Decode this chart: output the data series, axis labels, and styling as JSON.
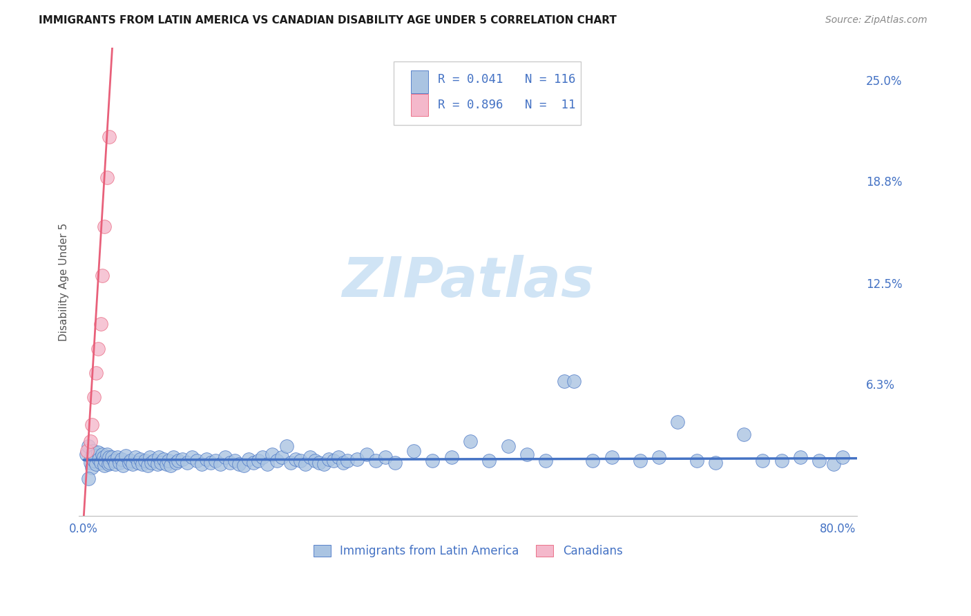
{
  "title": "IMMIGRANTS FROM LATIN AMERICA VS CANADIAN DISABILITY AGE UNDER 5 CORRELATION CHART",
  "source": "Source: ZipAtlas.com",
  "ylabel": "Disability Age Under 5",
  "xlim_min": -0.005,
  "xlim_max": 0.82,
  "ylim_min": -0.018,
  "ylim_max": 0.27,
  "ytick_vals": [
    0.0,
    0.063,
    0.125,
    0.188,
    0.25
  ],
  "ytick_labels": [
    "",
    "6.3%",
    "12.5%",
    "18.8%",
    "25.0%"
  ],
  "xtick_vals": [
    0.0,
    0.2,
    0.4,
    0.6,
    0.8
  ],
  "xtick_labels": [
    "0.0%",
    "",
    "",
    "",
    "80.0%"
  ],
  "background_color": "#ffffff",
  "grid_color": "#d0d0d0",
  "blue_fill": "#aac4e2",
  "blue_edge": "#4472c4",
  "pink_fill": "#f4b8cb",
  "pink_edge": "#e8607a",
  "blue_line_color": "#4472c4",
  "pink_line_color": "#e8607a",
  "tick_label_color": "#4472c4",
  "watermark_color": "#d0e4f5",
  "blue_scatter_x": [
    0.003,
    0.005,
    0.007,
    0.008,
    0.009,
    0.01,
    0.011,
    0.012,
    0.013,
    0.015,
    0.016,
    0.018,
    0.02,
    0.021,
    0.022,
    0.023,
    0.025,
    0.026,
    0.027,
    0.028,
    0.03,
    0.032,
    0.034,
    0.036,
    0.038,
    0.04,
    0.042,
    0.045,
    0.048,
    0.05,
    0.052,
    0.055,
    0.058,
    0.06,
    0.062,
    0.065,
    0.068,
    0.07,
    0.072,
    0.075,
    0.078,
    0.08,
    0.082,
    0.085,
    0.088,
    0.09,
    0.092,
    0.095,
    0.098,
    0.1,
    0.105,
    0.11,
    0.115,
    0.12,
    0.125,
    0.13,
    0.135,
    0.14,
    0.145,
    0.15,
    0.155,
    0.16,
    0.165,
    0.17,
    0.175,
    0.18,
    0.185,
    0.19,
    0.195,
    0.2,
    0.205,
    0.21,
    0.215,
    0.22,
    0.225,
    0.23,
    0.235,
    0.24,
    0.245,
    0.25,
    0.255,
    0.26,
    0.265,
    0.27,
    0.275,
    0.28,
    0.29,
    0.3,
    0.31,
    0.32,
    0.33,
    0.35,
    0.37,
    0.39,
    0.41,
    0.43,
    0.45,
    0.47,
    0.49,
    0.51,
    0.52,
    0.54,
    0.56,
    0.59,
    0.61,
    0.63,
    0.65,
    0.67,
    0.7,
    0.72,
    0.74,
    0.76,
    0.78,
    0.795,
    0.805,
    0.005
  ],
  "blue_scatter_y": [
    0.02,
    0.025,
    0.015,
    0.018,
    0.012,
    0.022,
    0.016,
    0.019,
    0.014,
    0.021,
    0.017,
    0.015,
    0.02,
    0.018,
    0.013,
    0.016,
    0.02,
    0.014,
    0.018,
    0.015,
    0.018,
    0.016,
    0.014,
    0.018,
    0.015,
    0.017,
    0.013,
    0.019,
    0.015,
    0.016,
    0.014,
    0.018,
    0.015,
    0.017,
    0.014,
    0.016,
    0.013,
    0.018,
    0.015,
    0.016,
    0.014,
    0.018,
    0.015,
    0.017,
    0.014,
    0.016,
    0.013,
    0.018,
    0.015,
    0.016,
    0.017,
    0.015,
    0.018,
    0.016,
    0.014,
    0.017,
    0.015,
    0.016,
    0.014,
    0.018,
    0.015,
    0.016,
    0.014,
    0.013,
    0.017,
    0.015,
    0.016,
    0.018,
    0.014,
    0.02,
    0.016,
    0.018,
    0.025,
    0.015,
    0.017,
    0.016,
    0.014,
    0.018,
    0.016,
    0.015,
    0.014,
    0.017,
    0.016,
    0.018,
    0.015,
    0.016,
    0.017,
    0.02,
    0.016,
    0.018,
    0.015,
    0.022,
    0.016,
    0.018,
    0.028,
    0.016,
    0.025,
    0.02,
    0.016,
    0.065,
    0.065,
    0.016,
    0.018,
    0.016,
    0.018,
    0.04,
    0.016,
    0.015,
    0.032,
    0.016,
    0.016,
    0.018,
    0.016,
    0.014,
    0.018,
    0.005
  ],
  "pink_scatter_x": [
    0.004,
    0.007,
    0.009,
    0.011,
    0.013,
    0.015,
    0.018,
    0.02,
    0.022,
    0.025,
    0.027
  ],
  "pink_scatter_y": [
    0.022,
    0.028,
    0.038,
    0.055,
    0.07,
    0.085,
    0.1,
    0.13,
    0.16,
    0.19,
    0.215
  ],
  "blue_trend_start_x": 0.0,
  "blue_trend_end_x": 0.82,
  "blue_trend_start_y": 0.0165,
  "blue_trend_end_y": 0.0175,
  "pink_trend_start_x": 0.0,
  "pink_trend_end_x": 0.032,
  "pink_trend_start_y": -0.02,
  "pink_trend_end_y": 0.285
}
